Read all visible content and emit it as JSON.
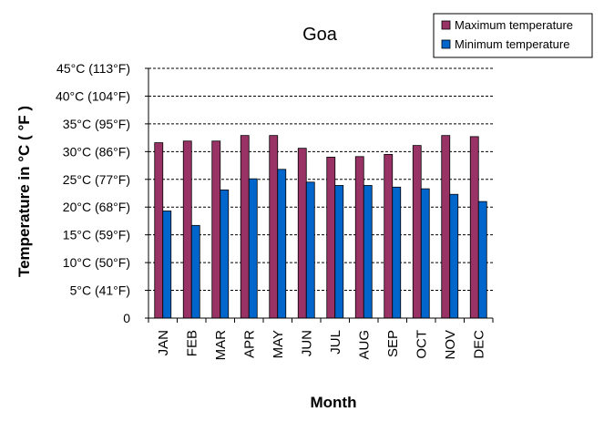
{
  "chart_data": {
    "type": "bar",
    "title": "Goa",
    "xlabel": "Month",
    "ylabel": "Temperature in °C ( °F )",
    "categories": [
      "JAN",
      "FEB",
      "MAR",
      "APR",
      "MAY",
      "JUN",
      "JUL",
      "AUG",
      "SEP",
      "OCT",
      "NOV",
      "DEC"
    ],
    "series": [
      {
        "name": "Maximum temperature",
        "color": "#993366",
        "values": [
          31.6,
          31.9,
          31.9,
          32.9,
          32.9,
          30.6,
          29.0,
          29.1,
          29.5,
          31.1,
          32.9,
          32.7
        ]
      },
      {
        "name": "Minimum temperature",
        "color": "#0066cc",
        "values": [
          19.3,
          16.7,
          23.1,
          25.1,
          26.8,
          24.5,
          23.9,
          23.9,
          23.6,
          23.3,
          22.3,
          21.0
        ]
      }
    ],
    "ylim": [
      0,
      45
    ],
    "yticks": [
      {
        "value": 0,
        "label": "0"
      },
      {
        "value": 5,
        "label": "5°C (41°F)"
      },
      {
        "value": 10,
        "label": "10°C (50°F)"
      },
      {
        "value": 15,
        "label": "15°C (59°F)"
      },
      {
        "value": 20,
        "label": "20°C (68°F)"
      },
      {
        "value": 25,
        "label": "25°C (77°F)"
      },
      {
        "value": 30,
        "label": "30°C (86°F)"
      },
      {
        "value": 35,
        "label": "35°C (95°F)"
      },
      {
        "value": 40,
        "label": "40°C (104°F)"
      },
      {
        "value": 45,
        "label": "45°C (113°F)"
      }
    ],
    "grid": "horizontal-dashed",
    "legend_position": "top-right"
  }
}
